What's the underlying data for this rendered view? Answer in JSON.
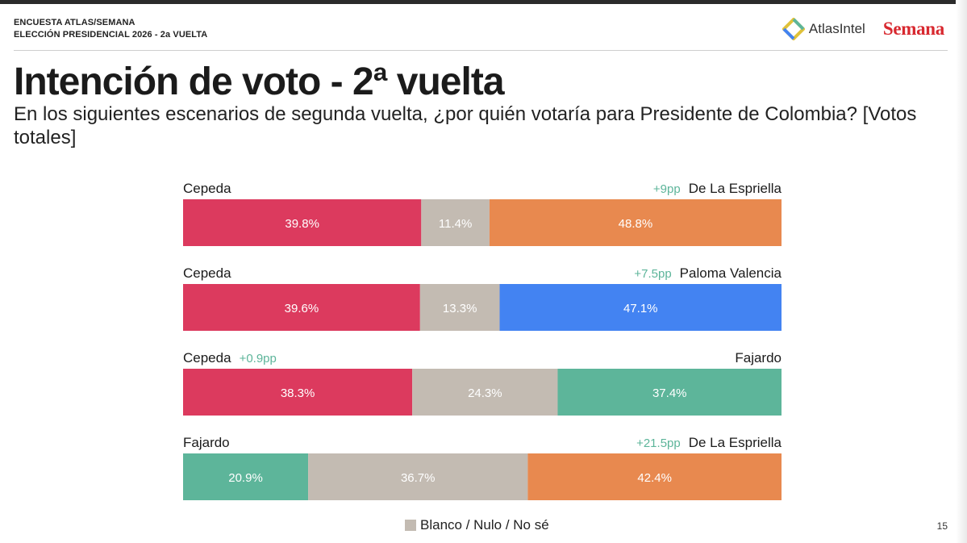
{
  "header": {
    "line1": "ENCUESTA ATLAS/SEMANA",
    "line2": "ELECCIÓN PRESIDENCIAL 2026 - 2a VUELTA"
  },
  "logos": {
    "atlas": "AtlasIntel",
    "semana": "Semana"
  },
  "title": "Intención de voto - 2ª vuelta",
  "subtitle": "En los siguientes escenarios de segunda vuelta, ¿por quién votaría para Presidente de Colombia? [Votos totales]",
  "page_number": "15",
  "legend": {
    "label": "Blanco / Nulo / No sé"
  },
  "colors": {
    "Cepeda": "#dc3a5e",
    "De La Espriella": "#e8894f",
    "Paloma Valencia": "#4383f2",
    "Fajardo": "#5db59a",
    "blank": "#c3bbb2",
    "margin_text": "#5db59a"
  },
  "chart_data": {
    "type": "bar",
    "stacked": true,
    "orientation": "horizontal",
    "unit": "%",
    "xlim": [
      0,
      100
    ],
    "grid": false,
    "legend_position": "bottom-center",
    "categories": [
      {
        "left": "Cepeda",
        "right": "De La Espriella",
        "margin": "+9pp",
        "margin_side": "right",
        "values": [
          39.8,
          11.4,
          48.8
        ],
        "labels": [
          "39.8%",
          "11.4%",
          "48.8%"
        ]
      },
      {
        "left": "Cepeda",
        "right": "Paloma Valencia",
        "margin": "+7.5pp",
        "margin_side": "right",
        "values": [
          39.6,
          13.3,
          47.1
        ],
        "labels": [
          "39.6%",
          "13.3%",
          "47.1%"
        ]
      },
      {
        "left": "Cepeda",
        "right": "Fajardo",
        "margin": "+0.9pp",
        "margin_side": "left",
        "values": [
          38.3,
          24.3,
          37.4
        ],
        "labels": [
          "38.3%",
          "24.3%",
          "37.4%"
        ]
      },
      {
        "left": "Fajardo",
        "right": "De La Espriella",
        "margin": "+21.5pp",
        "margin_side": "right",
        "values": [
          20.9,
          36.7,
          42.4
        ],
        "labels": [
          "20.9%",
          "36.7%",
          "42.4%"
        ]
      }
    ]
  }
}
